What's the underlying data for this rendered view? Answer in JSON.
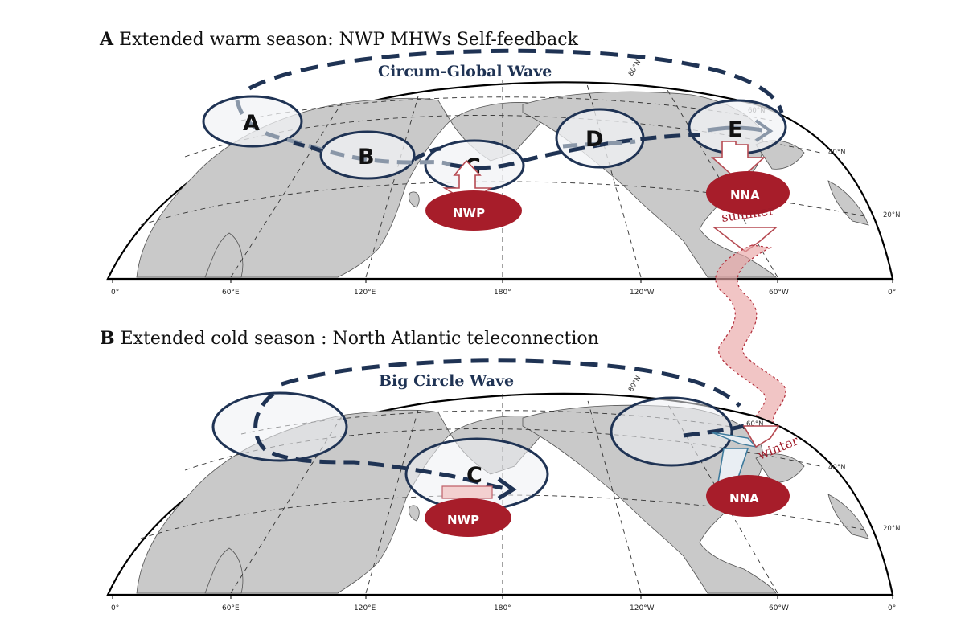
{
  "colors": {
    "navy": "#1f3354",
    "land": "#c9c9c9",
    "land_edge": "#555555",
    "red": "#a71d2a",
    "pink": "#e9a6a6",
    "gray_arrow": "#8a97a8"
  },
  "panel_a": {
    "letter": "A",
    "title": " Extended warm season: NWP MHWs Self-feedback",
    "wave_label": "Circum-Global Wave",
    "regions": [
      "A",
      "B",
      "C",
      "D",
      "E"
    ],
    "blobs": [
      "NWP",
      "NNA"
    ]
  },
  "panel_b": {
    "letter": "B",
    "title": " Extended cold season : North Atlantic teleconnection",
    "wave_label": "Big Circle Wave",
    "regions": [
      "C"
    ],
    "blobs": [
      "NWP",
      "NNA"
    ]
  },
  "seasons": {
    "summer": "summer",
    "winter": "winter"
  },
  "lon_ticks": [
    "0°",
    "60°E",
    "120°E",
    "180°",
    "120°W",
    "60°W",
    "0°"
  ],
  "lat_labels": [
    "80°N",
    "60°N",
    "40°N",
    "20°N"
  ]
}
